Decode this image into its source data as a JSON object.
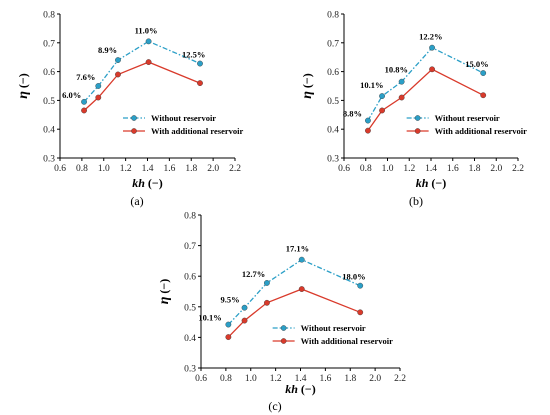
{
  "colors": {
    "without": "#2b9fc7",
    "with": "#d93a2b",
    "axis": "#000000"
  },
  "chart_data": [
    {
      "type": "line",
      "panel_label": "(a)",
      "xlabel": "kh (−)",
      "xlabel_parts": [
        "kh",
        " (−)"
      ],
      "ylabel": "η (−)",
      "ylabel_parts": [
        "η",
        " (−)"
      ],
      "xlim": [
        0.6,
        2.2
      ],
      "ylim": [
        0.3,
        0.8
      ],
      "xticks": [
        "0.6",
        "0.8",
        "1.0",
        "1.2",
        "1.4",
        "1.6",
        "1.8",
        "2.0",
        "2.2"
      ],
      "yticks": [
        "0.3",
        "0.4",
        "0.5",
        "0.6",
        "0.7",
        "0.8"
      ],
      "legend_position": "lower-right",
      "series": [
        {
          "name": "Without reservoir",
          "style": "dash-dot",
          "x": [
            0.82,
            0.95,
            1.13,
            1.41,
            1.88
          ],
          "y": [
            0.495,
            0.55,
            0.64,
            0.705,
            0.628
          ]
        },
        {
          "name": "With additional reservoir",
          "style": "solid",
          "x": [
            0.82,
            0.95,
            1.13,
            1.41,
            1.88
          ],
          "y": [
            0.465,
            0.51,
            0.59,
            0.633,
            0.56
          ]
        }
      ],
      "annotations": [
        "6.0%",
        "7.6%",
        "8.9%",
        "11.0%",
        "12.5%"
      ]
    },
    {
      "type": "line",
      "panel_label": "(b)",
      "xlabel": "kh (−)",
      "xlabel_parts": [
        "kh",
        " (−)"
      ],
      "ylabel": "η (−)",
      "ylabel_parts": [
        "η",
        " (−)"
      ],
      "xlim": [
        0.6,
        2.2
      ],
      "ylim": [
        0.3,
        0.8
      ],
      "xticks": [
        "0.6",
        "0.8",
        "1.0",
        "1.2",
        "1.4",
        "1.6",
        "1.8",
        "2.0",
        "2.2"
      ],
      "yticks": [
        "0.3",
        "0.4",
        "0.5",
        "0.6",
        "0.7",
        "0.8"
      ],
      "legend_position": "lower-right",
      "series": [
        {
          "name": "Without reservoir",
          "style": "dash-dot",
          "x": [
            0.82,
            0.95,
            1.13,
            1.41,
            1.88
          ],
          "y": [
            0.43,
            0.515,
            0.565,
            0.683,
            0.595
          ]
        },
        {
          "name": "With additional reservoir",
          "style": "solid",
          "x": [
            0.82,
            0.95,
            1.13,
            1.41,
            1.88
          ],
          "y": [
            0.395,
            0.465,
            0.51,
            0.608,
            0.518
          ]
        }
      ],
      "annotations": [
        "8.8%",
        "10.1%",
        "10.8%",
        "12.2%",
        "15.0%"
      ]
    },
    {
      "type": "line",
      "panel_label": "(c)",
      "xlabel": "kh (−)",
      "xlabel_parts": [
        "kh",
        " (−)"
      ],
      "ylabel": "η (−)",
      "ylabel_parts": [
        "η",
        " (−)"
      ],
      "xlim": [
        0.6,
        2.2
      ],
      "ylim": [
        0.3,
        0.8
      ],
      "xticks": [
        "0.6",
        "0.8",
        "1.0",
        "1.2",
        "1.4",
        "1.6",
        "1.8",
        "2.0",
        "2.2"
      ],
      "yticks": [
        "0.3",
        "0.4",
        "0.5",
        "0.6",
        "0.7",
        "0.8"
      ],
      "legend_position": "lower-right",
      "series": [
        {
          "name": "Without reservoir",
          "style": "dash-dot",
          "x": [
            0.82,
            0.95,
            1.13,
            1.41,
            1.88
          ],
          "y": [
            0.442,
            0.497,
            0.578,
            0.654,
            0.569
          ]
        },
        {
          "name": "With additional reservoir",
          "style": "solid",
          "x": [
            0.82,
            0.95,
            1.13,
            1.41,
            1.88
          ],
          "y": [
            0.401,
            0.455,
            0.513,
            0.558,
            0.482
          ]
        }
      ],
      "annotations": [
        "10.1%",
        "9.5%",
        "12.7%",
        "17.1%",
        "18.0%"
      ]
    }
  ]
}
